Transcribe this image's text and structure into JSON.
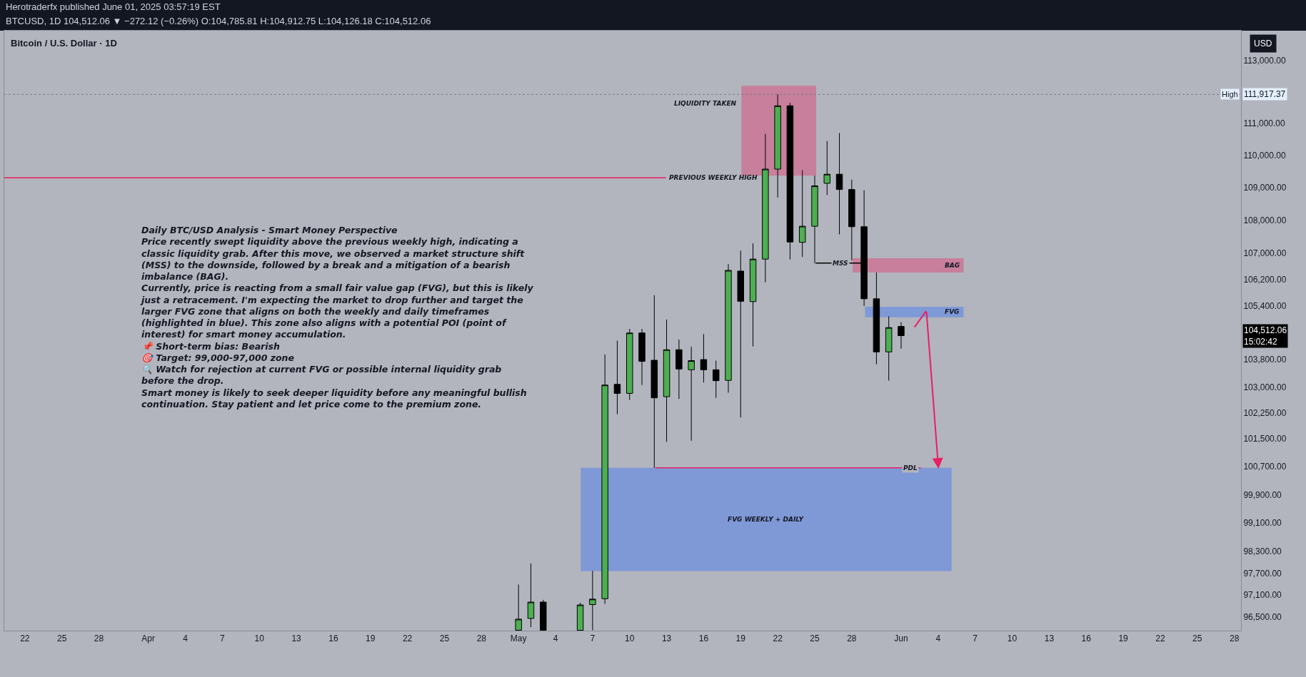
{
  "chart_data": {
    "type": "candlestick",
    "title": "Bitcoin / U.S. Dollar · 1D",
    "colors": [
      "#4caf50",
      "#4caf50",
      "#000000",
      "#4caf50",
      "#4caf50",
      "#4caf50",
      "#000000",
      "#4caf50",
      "#000000",
      "#000000",
      "#4caf50",
      "#000000",
      "#4caf50",
      "#000000",
      "#000000",
      "#4caf50",
      "#000000",
      "#4caf50",
      "#4caf50",
      "#4caf50",
      "#000000",
      "#4caf50",
      "#4caf50",
      "#4caf50",
      "#000000",
      "#000000",
      "#000000",
      "#000000",
      "#4caf50",
      "#000000"
    ],
    "log": true,
    "grid": false,
    "x": [
      "2025-05-01",
      "2025-05-02",
      "2025-05-03",
      "2025-05-06",
      "2025-05-07",
      "2025-05-08",
      "2025-05-09",
      "2025-05-10",
      "2025-05-11",
      "2025-05-12",
      "2025-05-13",
      "2025-05-14",
      "2025-05-15",
      "2025-05-16",
      "2025-05-17",
      "2025-05-18",
      "2025-05-19",
      "2025-05-20",
      "2025-05-21",
      "2025-05-22",
      "2025-05-23",
      "2025-05-24",
      "2025-05-25",
      "2025-05-26",
      "2025-05-27",
      "2025-05-28",
      "2025-05-29",
      "2025-05-30",
      "2025-05-31",
      "2025-06-01"
    ],
    "ohlc": [
      [
        96130,
        97385,
        96130,
        96433
      ],
      [
        96454,
        97970,
        96215,
        96902
      ],
      [
        96902,
        96963,
        96130,
        96130
      ],
      [
        96130,
        96883,
        96130,
        96823
      ],
      [
        96833,
        97767,
        96130,
        96984
      ],
      [
        96994,
        103955,
        96853,
        103058
      ],
      [
        103078,
        104365,
        102209,
        102814
      ],
      [
        102814,
        104711,
        102623,
        104592
      ],
      [
        104592,
        104711,
        103058,
        103753
      ],
      [
        103785,
        105720,
        100668,
        102684
      ],
      [
        102718,
        104992,
        101410,
        104096
      ],
      [
        104096,
        104398,
        102654,
        103527
      ],
      [
        103505,
        104183,
        101440,
        103774
      ],
      [
        103805,
        104559,
        103133,
        103505
      ],
      [
        103505,
        103774,
        102684,
        103185
      ],
      [
        103195,
        106654,
        102835,
        106466
      ],
      [
        106445,
        107063,
        102114,
        105536
      ],
      [
        105526,
        107285,
        104193,
        106808
      ],
      [
        106808,
        110672,
        106105,
        109570
      ],
      [
        109570,
        111917.37,
        108691,
        111556
      ],
      [
        111556,
        111649,
        106796,
        107328
      ],
      [
        107317,
        109535,
        106874,
        107808
      ],
      [
        107808,
        109366,
        106687,
        109050
      ],
      [
        109130,
        110444,
        108768,
        109411
      ],
      [
        109411,
        110697,
        107561,
        108938
      ],
      [
        108938,
        109243,
        106765,
        107794
      ],
      [
        107794,
        108916,
        105394,
        105612
      ],
      [
        105612,
        106401,
        103666,
        104031
      ],
      [
        104031,
        105089,
        103185,
        104753
      ],
      [
        104785.81,
        104912.75,
        104126.18,
        104512.06
      ]
    ],
    "xlim": [
      "2025-03-20T08:00",
      "2025-06-28T13:00"
    ],
    "xticks": [
      {
        "value": "2025-03-22",
        "label": "22"
      },
      {
        "value": "2025-03-25",
        "label": "25"
      },
      {
        "value": "2025-03-28",
        "label": "28"
      },
      {
        "value": "2025-04-01",
        "label": "Apr"
      },
      {
        "value": "2025-04-04",
        "label": "4"
      },
      {
        "value": "2025-04-07",
        "label": "7"
      },
      {
        "value": "2025-04-10",
        "label": "10"
      },
      {
        "value": "2025-04-13",
        "label": "13"
      },
      {
        "value": "2025-04-16",
        "label": "16"
      },
      {
        "value": "2025-04-19",
        "label": "19"
      },
      {
        "value": "2025-04-22",
        "label": "22"
      },
      {
        "value": "2025-04-25",
        "label": "25"
      },
      {
        "value": "2025-04-28",
        "label": "28"
      },
      {
        "value": "2025-05-01",
        "label": "May"
      },
      {
        "value": "2025-05-04",
        "label": "4"
      },
      {
        "value": "2025-05-07",
        "label": "7"
      },
      {
        "value": "2025-05-10",
        "label": "10"
      },
      {
        "value": "2025-05-13",
        "label": "13"
      },
      {
        "value": "2025-05-16",
        "label": "16"
      },
      {
        "value": "2025-05-19",
        "label": "19"
      },
      {
        "value": "2025-05-22",
        "label": "22"
      },
      {
        "value": "2025-05-25",
        "label": "25"
      },
      {
        "value": "2025-05-28",
        "label": "28"
      },
      {
        "value": "2025-06-01",
        "label": "Jun"
      },
      {
        "value": "2025-06-04",
        "label": "4"
      },
      {
        "value": "2025-06-07",
        "label": "7"
      },
      {
        "value": "2025-06-10",
        "label": "10"
      },
      {
        "value": "2025-06-13",
        "label": "13"
      },
      {
        "value": "2025-06-16",
        "label": "16"
      },
      {
        "value": "2025-06-19",
        "label": "19"
      },
      {
        "value": "2025-06-22",
        "label": "22"
      },
      {
        "value": "2025-06-25",
        "label": "25"
      },
      {
        "value": "2025-06-28",
        "label": "28"
      }
    ],
    "ylim": [
      96120,
      113960
    ],
    "yticks": [
      {
        "value": 113000,
        "label": "113,000.00"
      },
      {
        "value": 111000,
        "label": "111,000.00"
      },
      {
        "value": 110000,
        "label": "110,000.00"
      },
      {
        "value": 109000,
        "label": "109,000.00"
      },
      {
        "value": 108000,
        "label": "108,000.00"
      },
      {
        "value": 107000,
        "label": "107,000.00"
      },
      {
        "value": 106200,
        "label": "106,200.00"
      },
      {
        "value": 105400,
        "label": "105,400.00"
      },
      {
        "value": 103800,
        "label": "103,800.00"
      },
      {
        "value": 103000,
        "label": "103,000.00"
      },
      {
        "value": 102250,
        "label": "102,250.00"
      },
      {
        "value": 101500,
        "label": "101,500.00"
      },
      {
        "value": 100700,
        "label": "100,700.00"
      },
      {
        "value": 99900,
        "label": "99,900.00"
      },
      {
        "value": 99100,
        "label": "99,100.00"
      },
      {
        "value": 98300,
        "label": "98,300.00"
      },
      {
        "value": 97700,
        "label": "97,700.00"
      },
      {
        "value": 97100,
        "label": "97,100.00"
      },
      {
        "value": 96500,
        "label": "96,500.00"
      }
    ],
    "ref_lines": [
      {
        "axis": "y",
        "value": 111917.37,
        "label": "High",
        "color": "#787b86",
        "line_style": "dotted"
      },
      {
        "axis": "y",
        "value": 109300,
        "label": "PREVIOUS WEEKLY HIGH",
        "color": "#e91e63",
        "line_style": "solid"
      },
      {
        "axis": "y",
        "value": 106690,
        "label": "MSS",
        "color": "#000000",
        "line_style": "solid"
      },
      {
        "axis": "y",
        "value": 100668,
        "label": "PDL",
        "color": "#e91e63",
        "line_style": "solid"
      }
    ],
    "bands": [
      {
        "axis": "y",
        "from": 109366,
        "to": 112193,
        "label": "LIQUIDITY TAKEN",
        "color": "#c77f9b"
      },
      {
        "axis": "y",
        "from": 106401,
        "to": 106831,
        "label": "BAG",
        "color": "#c77f9b"
      },
      {
        "axis": "y",
        "from": 105057,
        "to": 105372,
        "label": "FVG",
        "color": "#7f98d6"
      },
      {
        "axis": "y",
        "from": 97757,
        "to": 100668,
        "label": "FVG WEEKLY + DAILY",
        "color": "#7f98d6"
      }
    ],
    "annotations": [
      "Herotraderfx published June 01, 2025 03:57:19 EST",
      "BTCUSD, 1D 104,512.06 ▼ −272.12 (−0.26%) O:104,785.81 H:104,912.75 L:104,126.18 C:104,512.06",
      "USD",
      "104,512.06\n15:02:42",
      "Daily BTC/USD Analysis - Smart Money Perspective\nPrice recently swept liquidity above the previous weekly high, indicating a\nclassic liquidity grab. After this move, we observed a market structure shift\n(MSS) to the downside, followed by a break and a mitigation of a bearish\nimbalance (BAG).\nCurrently, price is reacting from a small fair value gap (FVG), but this is likely\njust a retracement. I'm expecting the market to drop further and target the\nlarger FVG zone that aligns on both the weekly and daily timeframes\n(highlighted in blue). This zone also aligns with a potential POI (point of\ninterest) for smart money accumulation.\n📌 Short-term bias: Bearish\n🎯 Target: 99,000-97,000 zone\n🔍 Watch for rejection at current FVG or possible internal liquidity grab\nbefore the drop.\nSmart money is likely to seek deeper liquidity before any meaningful bullish\ncontinuation. Stay patient and let price come to the premium zone.",
      "111,917.37"
    ]
  }
}
